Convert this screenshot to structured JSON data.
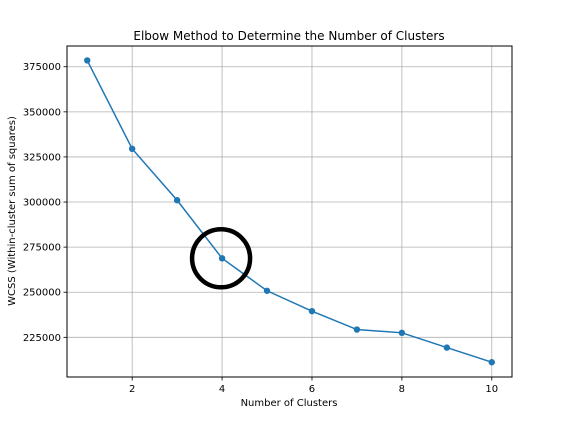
{
  "chart_data": {
    "type": "line",
    "title": "Elbow Method to Determine the Number of Clusters",
    "xlabel": "Number of Clusters",
    "ylabel": "WCSS (Within-cluster sum of squares)",
    "x": [
      1,
      2,
      3,
      4,
      5,
      6,
      7,
      8,
      9,
      10
    ],
    "series": [
      {
        "values": [
          378500,
          329500,
          301000,
          268800,
          250800,
          239500,
          229300,
          227500,
          219300,
          211200
        ],
        "color": "#1f77b4",
        "marker": "circle"
      }
    ],
    "xlim": [
      0.55,
      10.45
    ],
    "ylim": [
      203000,
      386500
    ],
    "xticks": [
      2,
      4,
      6,
      8,
      10
    ],
    "yticks": [
      225000,
      250000,
      275000,
      300000,
      325000,
      350000,
      375000
    ],
    "grid": true,
    "annotation": {
      "shape": "circle",
      "at_x": 4,
      "at_y": 268800,
      "color": "#000000"
    }
  }
}
